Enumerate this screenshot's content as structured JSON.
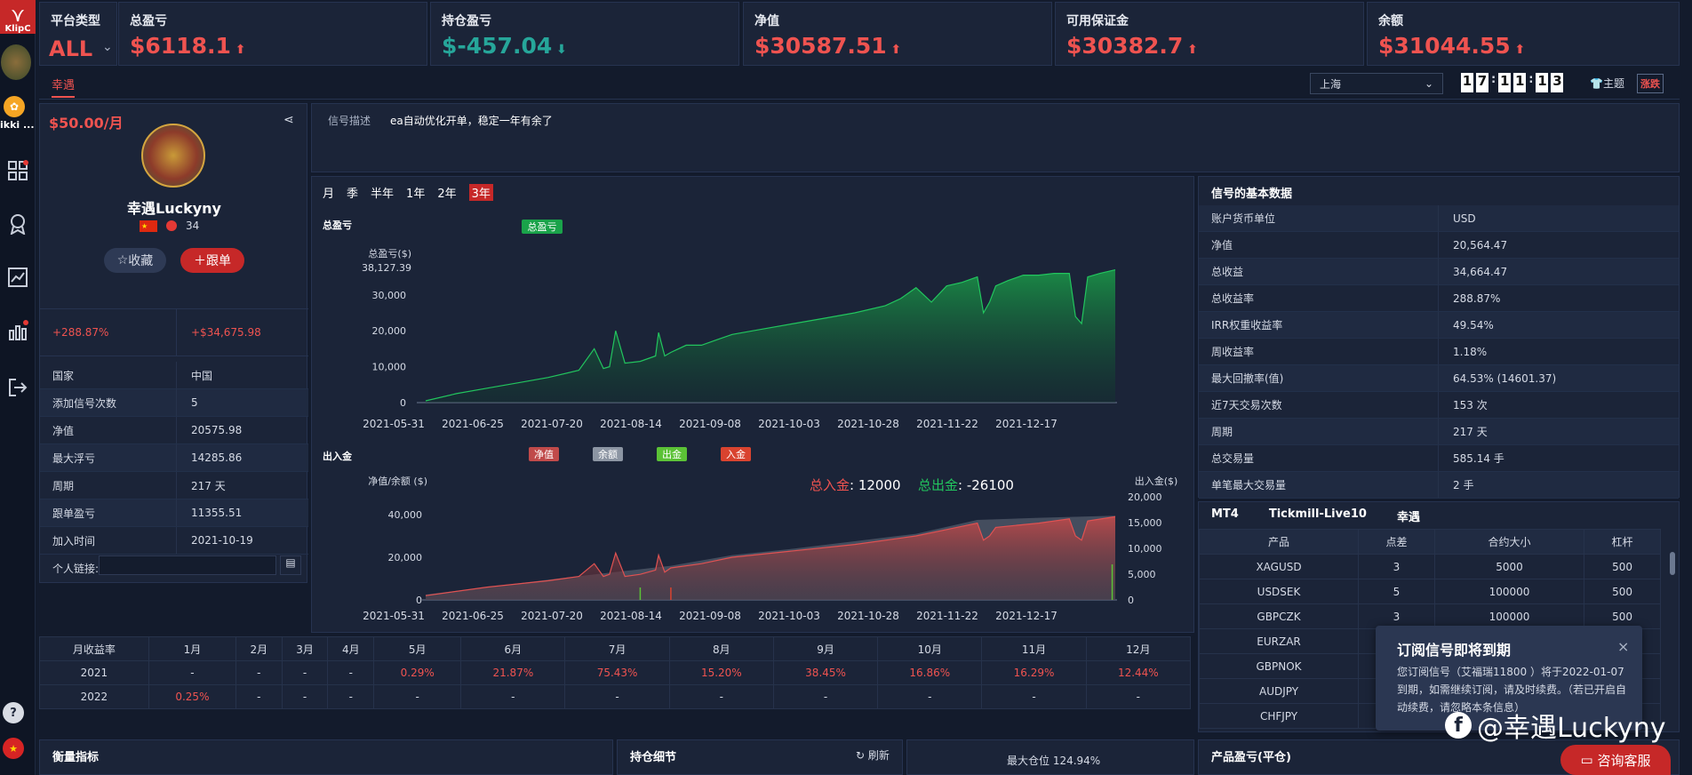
{
  "nav": {
    "logo": "KlipC",
    "user2": "ikki ..."
  },
  "stats": [
    {
      "label": "平台类型",
      "value": "ALL",
      "color": "#ef5350"
    },
    {
      "label": "总盈亏",
      "value": "$6118.1",
      "color": "#ef5350",
      "arrow": "up"
    },
    {
      "label": "持仓盈亏",
      "value": "$-457.04",
      "color": "#26a69a",
      "arrow": "down"
    },
    {
      "label": "净值",
      "value": "$30587.51",
      "color": "#ef5350",
      "arrow": "up"
    },
    {
      "label": "可用保证金",
      "value": "$30382.7",
      "color": "#ef5350",
      "arrow": "up"
    },
    {
      "label": "余额",
      "value": "$31044.55",
      "color": "#ef5350",
      "arrow": "up"
    }
  ],
  "toolbar": {
    "tab": "幸遇",
    "city": "上海",
    "clock": [
      "1",
      "7",
      "1",
      "1",
      "1",
      "3"
    ],
    "theme": "主题",
    "updown": "涨跌"
  },
  "profile": {
    "price": "$50.00/月",
    "name": "幸遇Luckyny",
    "level": "34",
    "fav": "收藏",
    "follow": "跟单",
    "roi": "+288.87%",
    "profit": "+$34,675.98",
    "rows": [
      {
        "k": "国家",
        "v": "中国"
      },
      {
        "k": "添加信号次数",
        "v": "5"
      },
      {
        "k": "净值",
        "v": "20575.98"
      },
      {
        "k": "最大浮亏",
        "v": "14285.86"
      },
      {
        "k": "周期",
        "v": "217 天"
      },
      {
        "k": "跟单盈亏",
        "v": "11355.51"
      },
      {
        "k": "加入时间",
        "v": "2021-10-19"
      }
    ],
    "link_label": "个人链接:"
  },
  "signal": {
    "label": "信号描述",
    "text": "ea自动优化开单，稳定一年有余了"
  },
  "periods": [
    "月",
    "季",
    "半年",
    "1年",
    "2年",
    "3年"
  ],
  "chart_data": [
    {
      "type": "area",
      "title": "总盈亏",
      "ylabel": "总盈亏($)",
      "max_label": "38,127.39",
      "ylim": [
        0,
        38127.39
      ],
      "yticks": [
        "0",
        "10,000",
        "20,000",
        "30,000"
      ],
      "xticks": [
        "2021-05-31",
        "2021-06-25",
        "2021-07-20",
        "2021-08-14",
        "2021-09-08",
        "2021-10-03",
        "2021-10-28",
        "2021-11-22",
        "2021-12-17"
      ],
      "series": [
        {
          "name": "总盈亏",
          "color": "#1aa34a",
          "x": [
            0,
            10,
            20,
            30,
            40,
            50,
            55,
            58,
            60,
            62,
            65,
            70,
            75,
            76,
            78,
            80,
            85,
            90,
            95,
            100,
            110,
            120,
            130,
            140,
            150,
            155,
            160,
            165,
            170,
            175,
            180,
            182,
            184,
            186,
            190,
            195,
            200,
            205,
            210,
            212,
            214,
            216,
            220,
            225
          ],
          "values": [
            500,
            2500,
            4000,
            5500,
            7000,
            9000,
            15000,
            9500,
            10000,
            20000,
            11000,
            11500,
            13000,
            19500,
            13000,
            14000,
            16000,
            16000,
            17500,
            19000,
            20500,
            22000,
            23500,
            25000,
            27000,
            29000,
            32000,
            28000,
            32500,
            33500,
            35000,
            25000,
            28000,
            32500,
            34000,
            35500,
            35500,
            36000,
            36000,
            24000,
            22000,
            35000,
            36000,
            37000
          ]
        }
      ]
    },
    {
      "type": "area",
      "title": "出入金",
      "ylabel": "净值/余额 ($)",
      "y2label": "出入金($)",
      "ylim": [
        0,
        45000
      ],
      "y2lim": [
        0,
        21000
      ],
      "yticks": [
        "0",
        "20,000",
        "40,000"
      ],
      "y2ticks": [
        "0",
        "5,000",
        "10,000",
        "15,000",
        "20,000"
      ],
      "xticks": [
        "2021-05-31",
        "2021-06-25",
        "2021-07-20",
        "2021-08-14",
        "2021-09-08",
        "2021-10-03",
        "2021-10-28",
        "2021-11-22",
        "2021-12-17"
      ],
      "deposit_label": "总入金",
      "deposit": "12000",
      "withdraw_label": "总出金",
      "withdraw": "-26100",
      "series": [
        {
          "name": "净值",
          "color": "#c04a4a",
          "x": [
            0,
            20,
            40,
            50,
            55,
            58,
            60,
            62,
            65,
            70,
            75,
            76,
            78,
            80,
            90,
            100,
            120,
            140,
            160,
            170,
            180,
            182,
            184,
            186,
            200,
            210,
            212,
            214,
            216,
            225
          ],
          "values": [
            2000,
            6000,
            9000,
            11000,
            17000,
            11000,
            12000,
            22000,
            11000,
            12000,
            14000,
            21000,
            13000,
            15000,
            17000,
            20000,
            23000,
            26000,
            30000,
            33000,
            36000,
            28000,
            30000,
            34000,
            36000,
            38000,
            30000,
            28000,
            37000,
            39000
          ]
        },
        {
          "name": "余额",
          "color": "#8c95a3",
          "x": [
            0,
            40,
            80,
            100,
            120,
            140,
            160,
            180,
            200,
            225
          ],
          "values": [
            2500,
            9500,
            16000,
            21000,
            24000,
            27500,
            31000,
            37500,
            38500,
            39500
          ]
        },
        {
          "name": "出金",
          "color": "#5bc236"
        },
        {
          "name": "入金",
          "color": "#d9432f"
        }
      ]
    }
  ],
  "monthly": {
    "header": [
      "月收益率",
      "1月",
      "2月",
      "3月",
      "4月",
      "5月",
      "6月",
      "7月",
      "8月",
      "9月",
      "10月",
      "11月",
      "12月"
    ],
    "rows": [
      [
        "2021",
        "-",
        "-",
        "-",
        "-",
        "0.29%",
        "21.87%",
        "75.43%",
        "15.20%",
        "38.45%",
        "16.86%",
        "16.29%",
        "12.44%"
      ],
      [
        "2022",
        "0.25%",
        "-",
        "-",
        "-",
        "-",
        "-",
        "-",
        "-",
        "-",
        "-",
        "-",
        "-"
      ]
    ]
  },
  "basic": {
    "title": "信号的基本数据",
    "rows": [
      {
        "k": "账户货币单位",
        "v": "USD"
      },
      {
        "k": "净值",
        "v": "20,564.47"
      },
      {
        "k": "总收益",
        "v": "34,664.47"
      },
      {
        "k": "总收益率",
        "v": "288.87%"
      },
      {
        "k": "IRR权重收益率",
        "v": "49.54%"
      },
      {
        "k": "周收益率",
        "v": "1.18%"
      },
      {
        "k": "最大回撤率(值)",
        "v": "64.53% (14601.37)"
      },
      {
        "k": "近7天交易次数",
        "v": "153 次"
      },
      {
        "k": "周期",
        "v": "217 天"
      },
      {
        "k": "总交易量",
        "v": "585.14 手"
      },
      {
        "k": "单笔最大交易量",
        "v": "2 手"
      }
    ]
  },
  "broker": {
    "platform": "MT4",
    "server": "Tickmill-Live10",
    "name": "幸遇",
    "header": [
      "产品",
      "点差",
      "合约大小",
      "杠杆"
    ],
    "rows": [
      [
        "XAGUSD",
        "3",
        "5000",
        "500"
      ],
      [
        "USDSEK",
        "5",
        "100000",
        "500"
      ],
      [
        "GBPCZK",
        "3",
        "100000",
        "500"
      ],
      [
        "EURZAR",
        "",
        "",
        ""
      ],
      [
        "GBPNOK",
        "",
        "",
        ""
      ],
      [
        "AUDJPY",
        "",
        "",
        ""
      ],
      [
        "CHFJPY",
        "",
        "",
        ""
      ]
    ]
  },
  "popup": {
    "title": "订阅信号即将到期",
    "body": "您订阅信号（艾福瑞11800 ）将于2022-01-07到期，如需继续订阅，请及时续费。（若已开启自动续费，请忽略本条信息）"
  },
  "bottom": {
    "metrics": "衡量指标",
    "positions": "持仓细节",
    "refresh": "刷新",
    "maxpos": "最大仓位 124.94%",
    "product": "产品盈亏(平仓)"
  },
  "watermark": "@幸遇Luckyny",
  "service": "咨询客服"
}
